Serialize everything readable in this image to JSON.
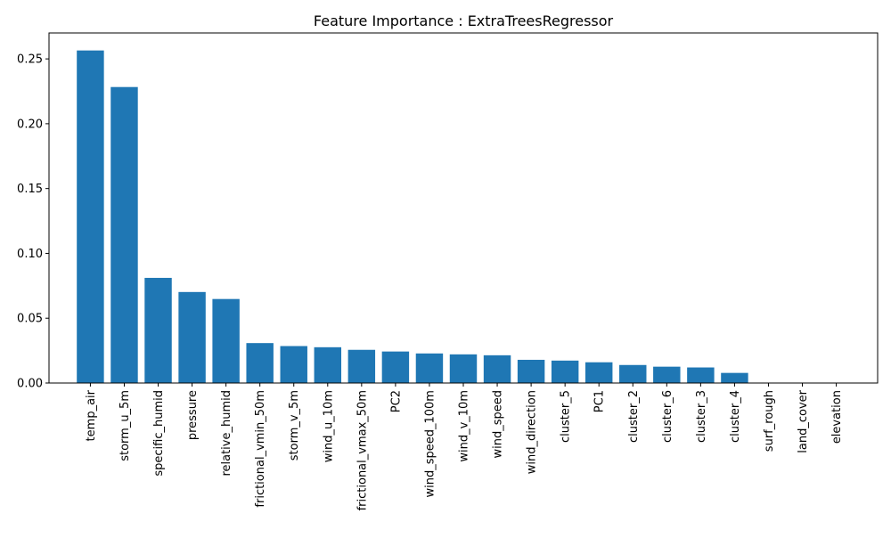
{
  "chart_data": {
    "type": "bar",
    "title": "Feature Importance : ExtraTreesRegressor",
    "xlabel": "",
    "ylabel": "",
    "categories": [
      "temp_air",
      "storm_u_5m",
      "specific_humid",
      "pressure",
      "relative_humid",
      "frictional_vmin_50m",
      "storm_v_5m",
      "wind_u_10m",
      "frictional_vmax_50m",
      "PC2",
      "wind_speed_100m",
      "wind_v_10m",
      "wind_speed",
      "wind_direction",
      "cluster_5",
      "PC1",
      "cluster_2",
      "cluster_6",
      "cluster_3",
      "cluster_4",
      "surf_rough",
      "land_cover",
      "elevation"
    ],
    "values": [
      0.2565,
      0.2283,
      0.0811,
      0.0702,
      0.0648,
      0.0308,
      0.0285,
      0.0276,
      0.0256,
      0.0243,
      0.0228,
      0.0221,
      0.0214,
      0.0179,
      0.0173,
      0.016,
      0.0139,
      0.0126,
      0.012,
      0.0078,
      0.0,
      0.0,
      0.0
    ],
    "ylim": [
      0,
      0.27
    ],
    "yticks": [
      0.0,
      0.05,
      0.1,
      0.15,
      0.2,
      0.25
    ],
    "ytick_labels": [
      "0.00",
      "0.05",
      "0.10",
      "0.15",
      "0.20",
      "0.25"
    ],
    "grid": false,
    "bar_color": "#1f77b4"
  }
}
